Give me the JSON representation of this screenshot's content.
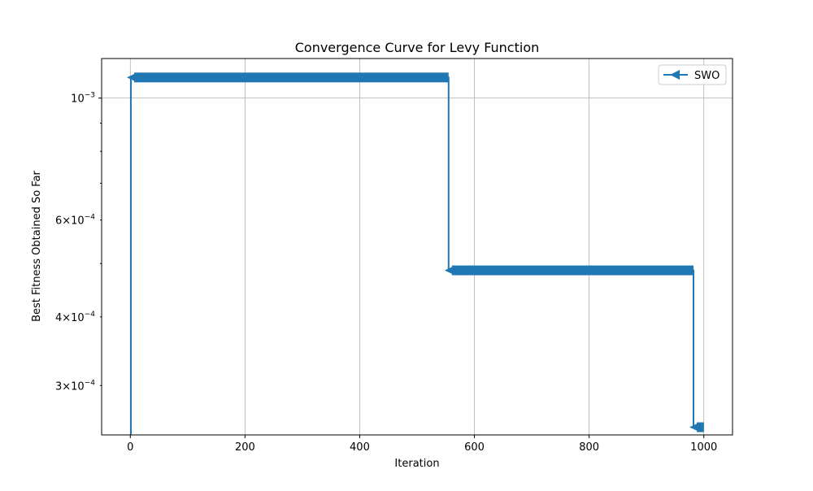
{
  "chart_data": {
    "type": "line",
    "title": "Convergence Curve for Levy Function",
    "xlabel": "Iteration",
    "ylabel": "Best Fitness Obtained So Far",
    "xlim": [
      -50,
      1050
    ],
    "ylim": [
      0.000244,
      0.00118
    ],
    "yscale": "log",
    "grid": true,
    "legend_position": "top-right",
    "x_ticks": [
      0,
      200,
      400,
      600,
      800,
      1000
    ],
    "x_tick_labels": [
      "0",
      "200",
      "400",
      "600",
      "800",
      "1000"
    ],
    "y_major_ticks": [
      0.001
    ],
    "y_major_tick_labels": [
      {
        "base": "10",
        "exp": "−3"
      }
    ],
    "y_minor_ticks": [
      0.0003,
      0.0004,
      0.0006
    ],
    "y_minor_tick_labels": [
      {
        "base": "3×10",
        "exp": "−4"
      },
      {
        "base": "4×10",
        "exp": "−4"
      },
      {
        "base": "6×10",
        "exp": "−4"
      }
    ],
    "y_unlabeled_minor_ticks": [
      0.0005,
      0.0007,
      0.0008,
      0.0009
    ],
    "series": [
      {
        "name": "SWO",
        "color": "#1f77b4",
        "marker": "triangle-left",
        "segments": [
          {
            "x_start": 1,
            "x_end": 555,
            "y": 0.00109
          },
          {
            "x_start": 555,
            "x_end": 982,
            "y": 0.000486
          },
          {
            "x_start": 982,
            "x_end": 1000,
            "y": 0.000252
          }
        ],
        "start_from_below_axis": true
      }
    ]
  }
}
